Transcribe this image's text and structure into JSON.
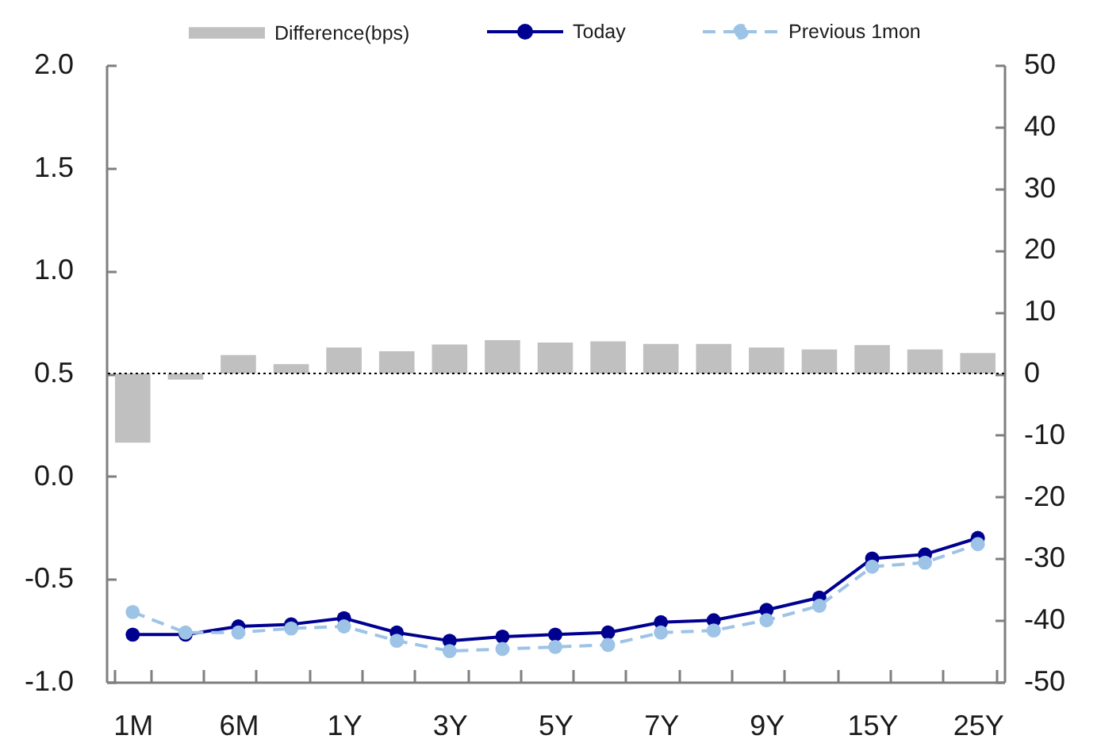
{
  "chart_data": {
    "type": "line",
    "categories": [
      "1M",
      null,
      "6M",
      null,
      "1Y",
      null,
      "3Y",
      null,
      "5Y",
      null,
      "7Y",
      null,
      "9Y",
      null,
      "15Y",
      null,
      "25Y"
    ],
    "series": [
      {
        "name": "Difference(bps)",
        "type": "bar",
        "axis": "y2",
        "color": "#c0c0c0",
        "values": [
          -11.2,
          -1.0,
          3.0,
          1.5,
          4.2,
          3.6,
          4.7,
          5.4,
          5.0,
          5.2,
          4.8,
          4.8,
          4.2,
          3.9,
          4.6,
          3.9,
          3.3
        ]
      },
      {
        "name": "Today",
        "color": "#000090",
        "values": [
          -0.77,
          -0.77,
          -0.73,
          -0.72,
          -0.69,
          -0.76,
          -0.8,
          -0.78,
          -0.77,
          -0.76,
          -0.71,
          -0.7,
          -0.65,
          -0.59,
          -0.4,
          -0.38,
          -0.3
        ]
      },
      {
        "name": "Previous 1mon",
        "color": "#9dc3e6",
        "line_style": "dashed",
        "values": [
          -0.66,
          -0.76,
          -0.76,
          -0.74,
          -0.73,
          -0.8,
          -0.85,
          -0.84,
          -0.83,
          -0.82,
          -0.76,
          -0.75,
          -0.7,
          -0.63,
          -0.44,
          -0.42,
          -0.33
        ]
      }
    ],
    "ylim": [
      -1,
      2
    ],
    "yticks": [
      {
        "value": -1,
        "label": "-1.0"
      },
      -0.5,
      {
        "value": 0,
        "label": "0.0"
      },
      0.5,
      {
        "value": 1,
        "label": "1.0"
      },
      1.5,
      {
        "value": 2,
        "label": "2.0"
      }
    ],
    "y2lim": [
      -50,
      50
    ],
    "y2ticks": [
      -50,
      -40,
      -30,
      -20,
      -10,
      0,
      10,
      20,
      30,
      40,
      50
    ],
    "ref_lines": [
      {
        "axis": "y2",
        "value": 0,
        "line_style": "dotted",
        "color": "#000000"
      }
    ],
    "marker": "circle",
    "line_style": "solid",
    "legend": "top"
  }
}
